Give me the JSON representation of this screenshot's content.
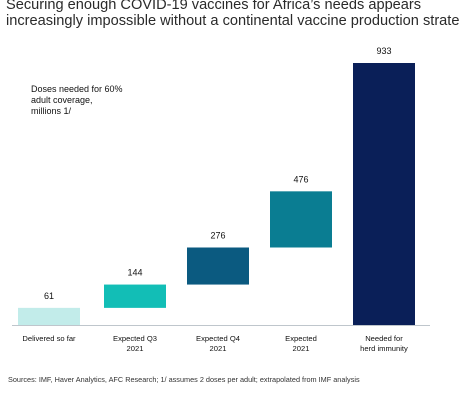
{
  "title_lines": [
    "Securing enough COVID-19 vaccines for Africa’s needs appears",
    "increasingly impossible without a continental vaccine production strategy"
  ],
  "annotation_lines": [
    "Doses needed for 60%",
    "adult coverage,",
    "millions 1/"
  ],
  "source": "Sources: IMF, Haver Analytics, AFC Research; 1/ assumes 2 doses per adult; extrapolated from IMF analysis",
  "chart_data": {
    "type": "bar",
    "subtype": "waterfall",
    "categories": [
      [
        "Delivered so far"
      ],
      [
        "Expected Q3",
        "2021"
      ],
      [
        "Expected Q4",
        "2021"
      ],
      [
        "Expected",
        "2021"
      ],
      [
        "Needed for",
        "herd immunity"
      ]
    ],
    "values": [
      61,
      83,
      132,
      200,
      933
    ],
    "cumulative": [
      61,
      144,
      276,
      476,
      933
    ],
    "data_labels": [
      "61",
      "144",
      "276",
      "476",
      "933"
    ],
    "bar_colors": [
      "#c2ecea",
      "#12beb6",
      "#0b5a80",
      "#0a7d92",
      "#0a1f58"
    ],
    "ylim": [
      0,
      933
    ]
  }
}
